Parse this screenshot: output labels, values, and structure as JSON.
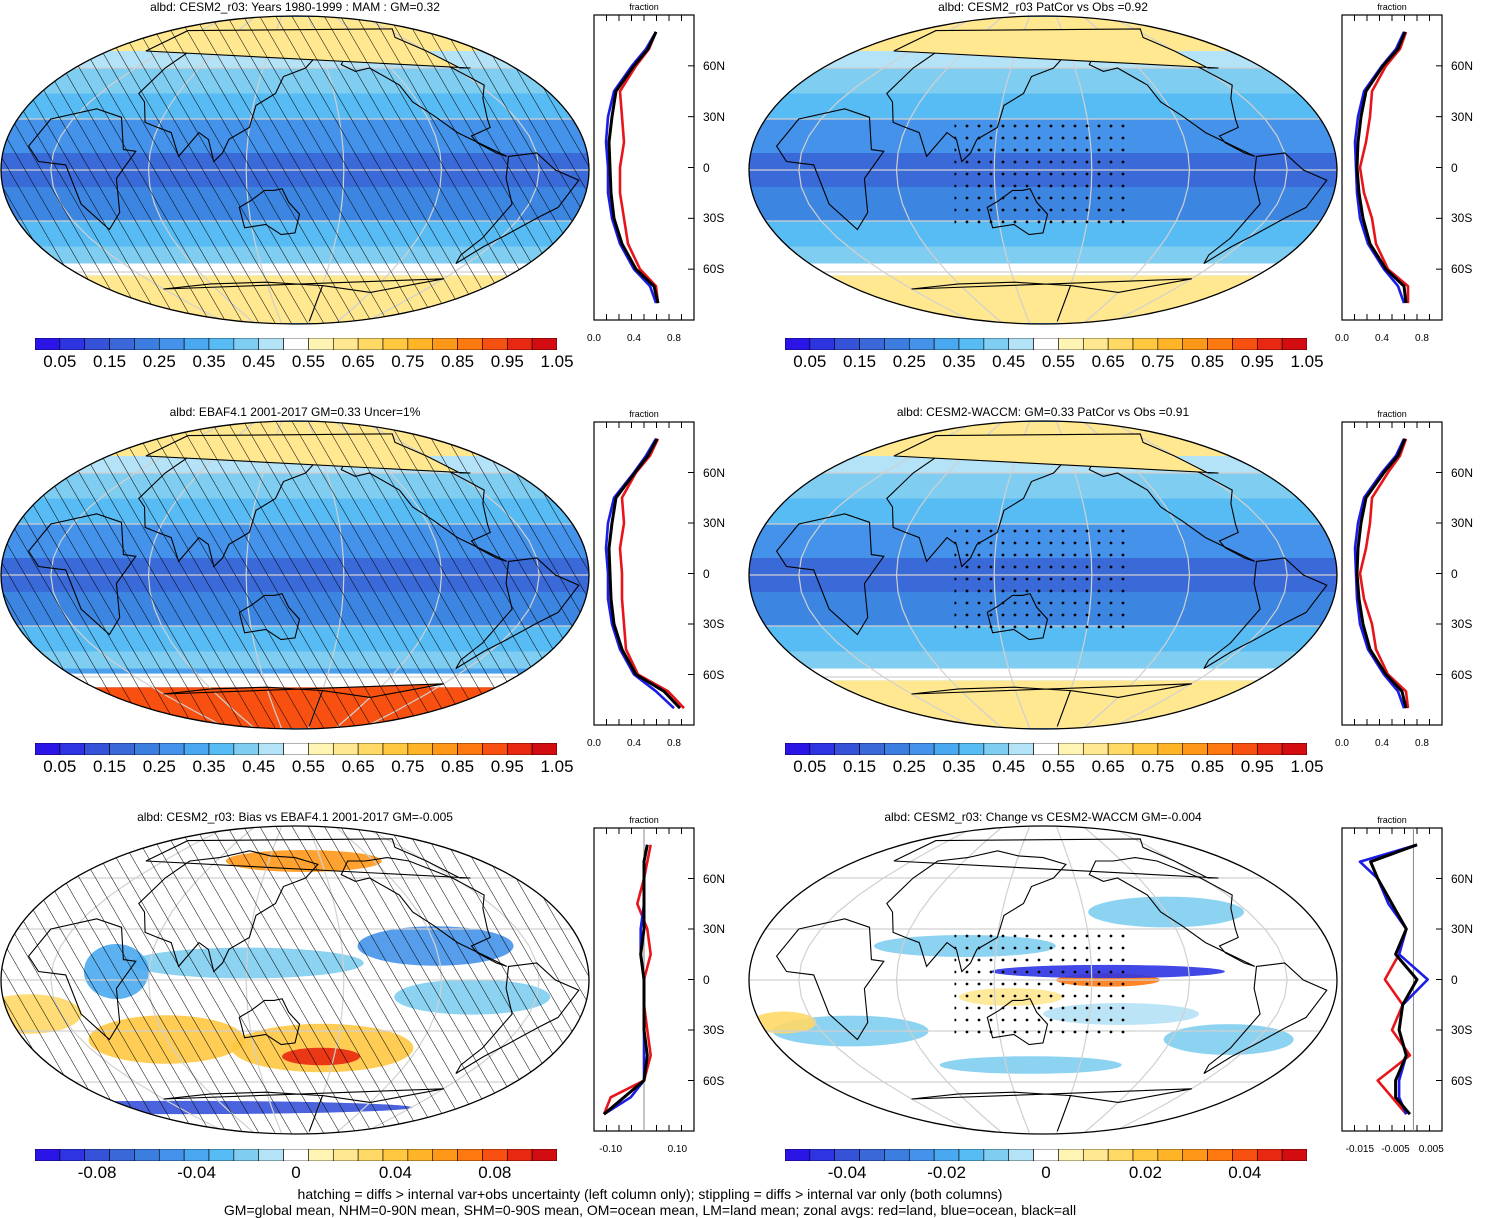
{
  "footer": {
    "line1": "hatching = diffs > internal var+obs uncertainty (left column only); stippling = diffs > internal var only (both columns)",
    "line2": "GM=global mean, NHM=0-90N mean, SHM=0-90S mean, OM=ocean mean, LM=land mean; zonal avgs: red=land, blue=ocean, black=all"
  },
  "zonal_unit": "fraction",
  "lat_ticks": [
    "60N",
    "30N",
    "0",
    "30S",
    "60S"
  ],
  "colors": {
    "land": "#e8141c",
    "ocean": "#1c1ce8",
    "all": "#000000",
    "grid": "#c8c8c8"
  },
  "colorbars": {
    "absolute": {
      "labels": [
        "0.05",
        "0.15",
        "0.25",
        "0.35",
        "0.45",
        "0.55",
        "0.65",
        "0.75",
        "0.85",
        "0.95",
        "1.05"
      ],
      "colors": [
        "#2a14e6",
        "#2e34e2",
        "#3652d8",
        "#3a68d8",
        "#3c7ee0",
        "#4492ea",
        "#4aa8f0",
        "#58bcf4",
        "#7fcdf0",
        "#b4e2f6",
        "#ffffff",
        "#fff4b4",
        "#ffe890",
        "#ffd866",
        "#ffc840",
        "#ffb428",
        "#ff9818",
        "#ff7810",
        "#f85010",
        "#e82810",
        "#d20c10"
      ]
    },
    "difference": {
      "labels_left": [
        "-0.08",
        "-0.04",
        "0",
        "0.04",
        "0.08"
      ],
      "labels_right": [
        "-0.04",
        "-0.02",
        "0",
        "0.02",
        "0.04"
      ],
      "colors": [
        "#2a14e6",
        "#2e34e2",
        "#3652d8",
        "#3a68d8",
        "#3c7ee0",
        "#4492ea",
        "#4aa8f0",
        "#58bcf4",
        "#7fcdf0",
        "#b4e2f6",
        "#ffffff",
        "#fff4b4",
        "#ffe890",
        "#ffd866",
        "#ffc840",
        "#ffb428",
        "#ff9818",
        "#ff7810",
        "#f85010",
        "#e82810",
        "#d20c10"
      ]
    }
  },
  "panels": [
    {
      "title": "albd: CESM2_r03: Years 1980-1999 : MAM : GM=0.32",
      "kind": "absolute",
      "hatching": true,
      "stippling": false
    },
    {
      "title": "albd: CESM2_r03 PatCor vs Obs =0.92",
      "kind": "absolute",
      "hatching": false,
      "stippling": true
    },
    {
      "title": "albd: EBAF4.1 2001-2017 GM=0.33 Uncer=1%",
      "kind": "absolute",
      "hatching": true,
      "stippling": false
    },
    {
      "title": "albd: CESM2-WACCM: GM=0.33 PatCor vs Obs =0.91",
      "kind": "absolute",
      "hatching": false,
      "stippling": true
    },
    {
      "title": "albd: CESM2_r03: Bias vs EBAF4.1 2001-2017 GM=-0.005",
      "kind": "difference",
      "hatching": true,
      "stippling": false
    },
    {
      "title": "albd: CESM2_r03: Change vs CESM2-WACCM GM=-0.004",
      "kind": "difference",
      "hatching": false,
      "stippling": true
    }
  ],
  "chart_data": [
    {
      "type": "line",
      "title": "fraction",
      "xlim": [
        0.0,
        1.0
      ],
      "xticks": [
        "0.0",
        "0.4",
        "0.8"
      ],
      "ylabel_ticks": [
        "60N",
        "30N",
        "0",
        "30S",
        "60S"
      ],
      "lat": [
        80,
        70,
        60,
        45,
        30,
        15,
        0,
        -15,
        -30,
        -45,
        -60,
        -70,
        -80
      ],
      "series": [
        {
          "name": "land",
          "values": [
            0.62,
            0.55,
            0.42,
            0.26,
            0.28,
            0.3,
            0.26,
            0.26,
            0.3,
            0.34,
            0.46,
            0.62,
            0.64
          ]
        },
        {
          "name": "ocean",
          "values": [
            0.62,
            0.52,
            0.38,
            0.2,
            0.14,
            0.12,
            0.14,
            0.14,
            0.18,
            0.26,
            0.4,
            0.56,
            0.62
          ]
        },
        {
          "name": "all",
          "values": [
            0.62,
            0.54,
            0.4,
            0.22,
            0.18,
            0.15,
            0.16,
            0.17,
            0.2,
            0.28,
            0.42,
            0.6,
            0.64
          ]
        }
      ]
    },
    {
      "type": "line",
      "title": "fraction",
      "xlim": [
        0.0,
        1.0
      ],
      "xticks": [
        "0.0",
        "0.4",
        "0.8"
      ],
      "ylabel_ticks": [
        "60N",
        "30N",
        "0",
        "30S",
        "60S"
      ],
      "lat": [
        80,
        70,
        60,
        45,
        30,
        15,
        0,
        -15,
        -30,
        -45,
        -60,
        -70,
        -80
      ],
      "series": [
        {
          "name": "land",
          "values": [
            0.64,
            0.58,
            0.44,
            0.3,
            0.28,
            0.24,
            0.18,
            0.22,
            0.3,
            0.34,
            0.46,
            0.66,
            0.66
          ]
        },
        {
          "name": "ocean",
          "values": [
            0.62,
            0.54,
            0.4,
            0.22,
            0.16,
            0.13,
            0.14,
            0.15,
            0.18,
            0.26,
            0.42,
            0.56,
            0.62
          ]
        },
        {
          "name": "all",
          "values": [
            0.63,
            0.56,
            0.41,
            0.24,
            0.19,
            0.16,
            0.15,
            0.17,
            0.21,
            0.28,
            0.44,
            0.62,
            0.64
          ]
        }
      ]
    },
    {
      "type": "line",
      "title": "fraction",
      "xlim": [
        0.0,
        1.0
      ],
      "xticks": [
        "0.0",
        "0.4",
        "0.8"
      ],
      "ylabel_ticks": [
        "60N",
        "30N",
        "0",
        "30S",
        "60S"
      ],
      "lat": [
        80,
        70,
        60,
        45,
        30,
        15,
        0,
        -15,
        -30,
        -45,
        -60,
        -70,
        -80
      ],
      "series": [
        {
          "name": "land",
          "values": [
            0.64,
            0.56,
            0.42,
            0.28,
            0.3,
            0.26,
            0.28,
            0.28,
            0.3,
            0.32,
            0.44,
            0.74,
            0.9
          ]
        },
        {
          "name": "ocean",
          "values": [
            0.62,
            0.52,
            0.4,
            0.2,
            0.14,
            0.12,
            0.14,
            0.14,
            0.18,
            0.26,
            0.4,
            0.62,
            0.8
          ]
        },
        {
          "name": "all",
          "values": [
            0.63,
            0.54,
            0.41,
            0.22,
            0.18,
            0.15,
            0.16,
            0.17,
            0.2,
            0.28,
            0.42,
            0.7,
            0.86
          ]
        }
      ]
    },
    {
      "type": "line",
      "title": "fraction",
      "xlim": [
        0.0,
        1.0
      ],
      "xticks": [
        "0.0",
        "0.4",
        "0.8"
      ],
      "ylabel_ticks": [
        "60N",
        "30N",
        "0",
        "30S",
        "60S"
      ],
      "lat": [
        80,
        70,
        60,
        45,
        30,
        15,
        0,
        -15,
        -30,
        -45,
        -60,
        -70,
        -80
      ],
      "series": [
        {
          "name": "land",
          "values": [
            0.64,
            0.58,
            0.46,
            0.3,
            0.28,
            0.24,
            0.18,
            0.22,
            0.3,
            0.34,
            0.46,
            0.64,
            0.66
          ]
        },
        {
          "name": "ocean",
          "values": [
            0.62,
            0.54,
            0.4,
            0.22,
            0.16,
            0.13,
            0.14,
            0.15,
            0.18,
            0.26,
            0.42,
            0.56,
            0.62
          ]
        },
        {
          "name": "all",
          "values": [
            0.63,
            0.56,
            0.42,
            0.24,
            0.19,
            0.16,
            0.15,
            0.17,
            0.21,
            0.28,
            0.44,
            0.6,
            0.64
          ]
        }
      ]
    },
    {
      "type": "line",
      "title": "fraction",
      "xlim": [
        -0.15,
        0.15
      ],
      "xticks": [
        "-0.10",
        "0.10"
      ],
      "ylabel_ticks": [
        "60N",
        "30N",
        "0",
        "30S",
        "60S"
      ],
      "lat": [
        80,
        70,
        60,
        45,
        30,
        15,
        0,
        -15,
        -30,
        -45,
        -60,
        -70,
        -80
      ],
      "series": [
        {
          "name": "land",
          "values": [
            0.02,
            0.01,
            0.0,
            -0.02,
            0.01,
            0.02,
            0.0,
            0.0,
            0.01,
            0.02,
            0.0,
            -0.1,
            -0.12
          ]
        },
        {
          "name": "ocean",
          "values": [
            0.01,
            0.0,
            0.0,
            0.0,
            -0.01,
            -0.01,
            0.0,
            0.0,
            0.0,
            0.0,
            0.0,
            -0.04,
            -0.12
          ]
        },
        {
          "name": "all",
          "values": [
            0.01,
            0.0,
            0.0,
            0.0,
            0.0,
            -0.01,
            0.0,
            0.0,
            0.0,
            0.01,
            0.0,
            -0.06,
            -0.12
          ]
        }
      ]
    },
    {
      "type": "line",
      "title": "fraction",
      "xlim": [
        -0.02,
        0.008
      ],
      "xticks": [
        "-0.015",
        "-0.005",
        "0.005"
      ],
      "ylabel_ticks": [
        "60N",
        "30N",
        "0",
        "30S",
        "60S"
      ],
      "lat": [
        80,
        70,
        60,
        45,
        30,
        15,
        0,
        -15,
        -30,
        -45,
        -60,
        -70,
        -80
      ],
      "series": [
        {
          "name": "land",
          "values": [
            0.001,
            -0.012,
            -0.01,
            -0.006,
            -0.002,
            -0.004,
            -0.008,
            -0.003,
            -0.006,
            -0.001,
            -0.01,
            -0.006,
            -0.002
          ]
        },
        {
          "name": "ocean",
          "values": [
            0.001,
            -0.015,
            -0.01,
            -0.007,
            -0.002,
            -0.004,
            0.004,
            -0.003,
            -0.004,
            -0.002,
            -0.004,
            -0.004,
            -0.002
          ]
        },
        {
          "name": "all",
          "values": [
            0.001,
            -0.012,
            -0.01,
            -0.006,
            -0.002,
            -0.005,
            0.001,
            -0.003,
            -0.004,
            -0.002,
            -0.005,
            -0.005,
            -0.001
          ]
        }
      ]
    }
  ]
}
